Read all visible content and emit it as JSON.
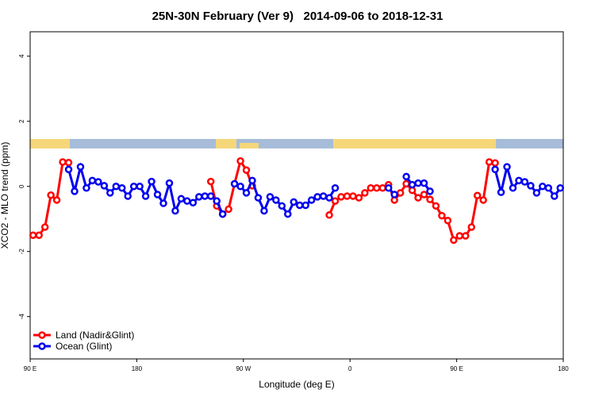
{
  "chart_data": {
    "type": "line",
    "title": "25N-30N February (Ver 9)   2014-09-06 to 2018-12-31",
    "x_label": "Longitude (deg E)",
    "y_label": "XCO2 - MLO trend (ppm)",
    "x": [
      92.5,
      97.5,
      102.5,
      107.5,
      112.5,
      117.5,
      122.5,
      127.5,
      132.5,
      137.5,
      142.5,
      147.5,
      152.5,
      157.5,
      162.5,
      167.5,
      172.5,
      177.5,
      182.5,
      187.5,
      192.5,
      197.5,
      202.5,
      207.5,
      212.5,
      217.5,
      222.5,
      227.5,
      232.5,
      237.5,
      242.5,
      247.5,
      252.5,
      257.5,
      262.5,
      267.5,
      272.5,
      277.5,
      282.5,
      287.5,
      292.5,
      297.5,
      302.5,
      307.5,
      312.5,
      317.5,
      322.5,
      327.5,
      332.5,
      337.5,
      342.5,
      347.5,
      352.5,
      357.5,
      362.5,
      367.5,
      372.5,
      377.5,
      382.5,
      387.5,
      392.5,
      397.5,
      402.5,
      407.5,
      412.5,
      417.5,
      422.5,
      427.5,
      432.5,
      437.5,
      442.5,
      447.5,
      452.5,
      457.5,
      462.5,
      467.5,
      472.5,
      477.5,
      482.5,
      487.5,
      492.5,
      497.5,
      502.5,
      507.5,
      512.5,
      517.5,
      522.5,
      527.5,
      532.5,
      537.5
    ],
    "series": [
      {
        "name": "Land (Nadir&Glint)",
        "color": "#ff0000",
        "values": [
          -1.5,
          -1.5,
          -1.25,
          -0.27,
          -0.42,
          0.75,
          0.73,
          null,
          null,
          null,
          null,
          null,
          null,
          null,
          null,
          null,
          null,
          null,
          null,
          null,
          null,
          null,
          null,
          null,
          null,
          null,
          null,
          null,
          null,
          null,
          0.15,
          -0.6,
          -0.85,
          -0.7,
          0.08,
          0.78,
          0.5,
          0.02,
          null,
          null,
          null,
          null,
          null,
          null,
          null,
          null,
          null,
          null,
          null,
          null,
          -0.88,
          -0.45,
          -0.32,
          -0.3,
          -0.3,
          -0.35,
          -0.2,
          -0.05,
          -0.05,
          -0.05,
          0.05,
          -0.42,
          -0.2,
          0.08,
          -0.12,
          -0.35,
          -0.25,
          -0.4,
          -0.6,
          -0.9,
          -1.05,
          -1.65,
          -1.52,
          -1.52,
          -1.25,
          -0.28,
          -0.42,
          0.75,
          0.72,
          null,
          null,
          null,
          null,
          null,
          null,
          null,
          null,
          null,
          null,
          null
        ]
      },
      {
        "name": "Ocean (Glint)",
        "color": "#0000ee",
        "values": [
          null,
          null,
          null,
          null,
          null,
          null,
          0.52,
          -0.15,
          0.6,
          -0.05,
          0.18,
          0.14,
          0.02,
          -0.2,
          0,
          -0.05,
          -0.3,
          0,
          0,
          -0.3,
          0.15,
          -0.25,
          -0.52,
          0.1,
          -0.75,
          -0.38,
          -0.45,
          -0.5,
          -0.32,
          -0.3,
          -0.3,
          -0.45,
          -0.85,
          null,
          0.08,
          0,
          -0.2,
          0.18,
          -0.35,
          -0.75,
          -0.32,
          -0.42,
          -0.6,
          -0.85,
          -0.48,
          -0.58,
          -0.58,
          -0.42,
          -0.32,
          -0.3,
          -0.35,
          -0.05,
          null,
          null,
          null,
          null,
          null,
          null,
          null,
          null,
          -0.05,
          -0.25,
          null,
          0.3,
          0.05,
          0.1,
          0.1,
          -0.15,
          null,
          null,
          null,
          null,
          null,
          null,
          null,
          null,
          null,
          null,
          0.52,
          -0.18,
          0.6,
          -0.05,
          0.18,
          0.14,
          0.02,
          -0.2,
          0,
          -0.05,
          -0.3,
          -0.05
        ]
      }
    ],
    "xlim": [
      90,
      540
    ],
    "ylim": [
      -5.3,
      4.75
    ],
    "xticks": [
      {
        "value": 90,
        "label": "90 E"
      },
      180,
      {
        "value": 270,
        "label": "90 W"
      },
      {
        "value": 360,
        "label": "0"
      },
      {
        "value": 450,
        "label": "90 E"
      },
      {
        "value": 540,
        "label": "180"
      }
    ],
    "yticks": [
      -4,
      -2,
      0,
      2,
      4
    ],
    "legend": "bottom-left"
  }
}
